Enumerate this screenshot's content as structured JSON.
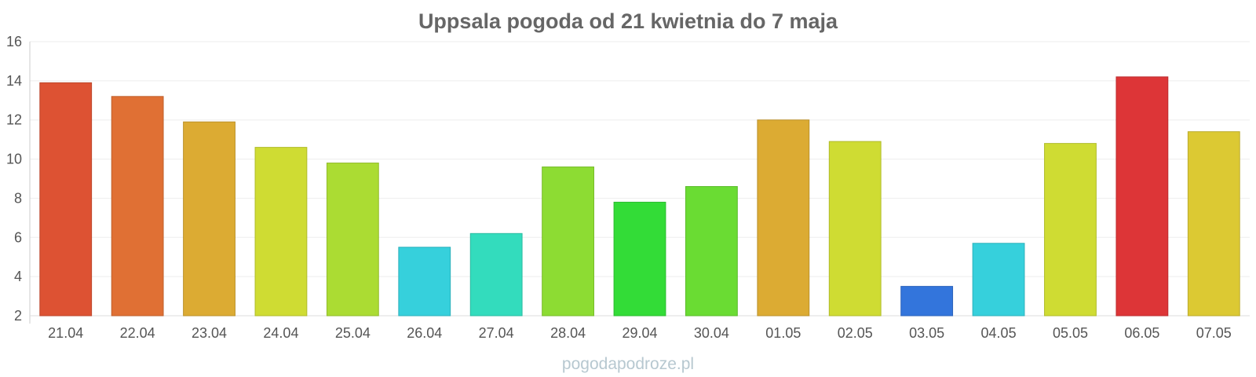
{
  "chart_data": {
    "type": "bar",
    "title": "Uppsala pogoda od 21 kwietnia do 7 maja",
    "xlabel": "",
    "ylabel": "",
    "categories": [
      "21.04",
      "22.04",
      "23.04",
      "24.04",
      "25.04",
      "26.04",
      "27.04",
      "28.04",
      "29.04",
      "30.04",
      "01.05",
      "02.05",
      "03.05",
      "04.05",
      "05.05",
      "06.05",
      "07.05"
    ],
    "values": [
      13.9,
      13.2,
      11.9,
      10.6,
      9.8,
      5.5,
      6.2,
      9.6,
      7.8,
      8.6,
      12.0,
      10.9,
      3.5,
      5.7,
      10.8,
      14.2,
      11.4
    ],
    "colors": [
      "#dd5233",
      "#e07034",
      "#dcab33",
      "#cfdc33",
      "#abdc33",
      "#36d0dc",
      "#33dcbd",
      "#8ddc33",
      "#33dc37",
      "#6adc33",
      "#dcab33",
      "#cfdc33",
      "#3375dc",
      "#36d0dc",
      "#cfdc33",
      "#dd3537",
      "#dcc933"
    ],
    "ylim": [
      2,
      16
    ],
    "yticks": [
      2,
      4,
      6,
      8,
      10,
      12,
      14,
      16
    ],
    "grid": true,
    "legend": "none"
  },
  "watermark": "pogodapodroze.pl"
}
